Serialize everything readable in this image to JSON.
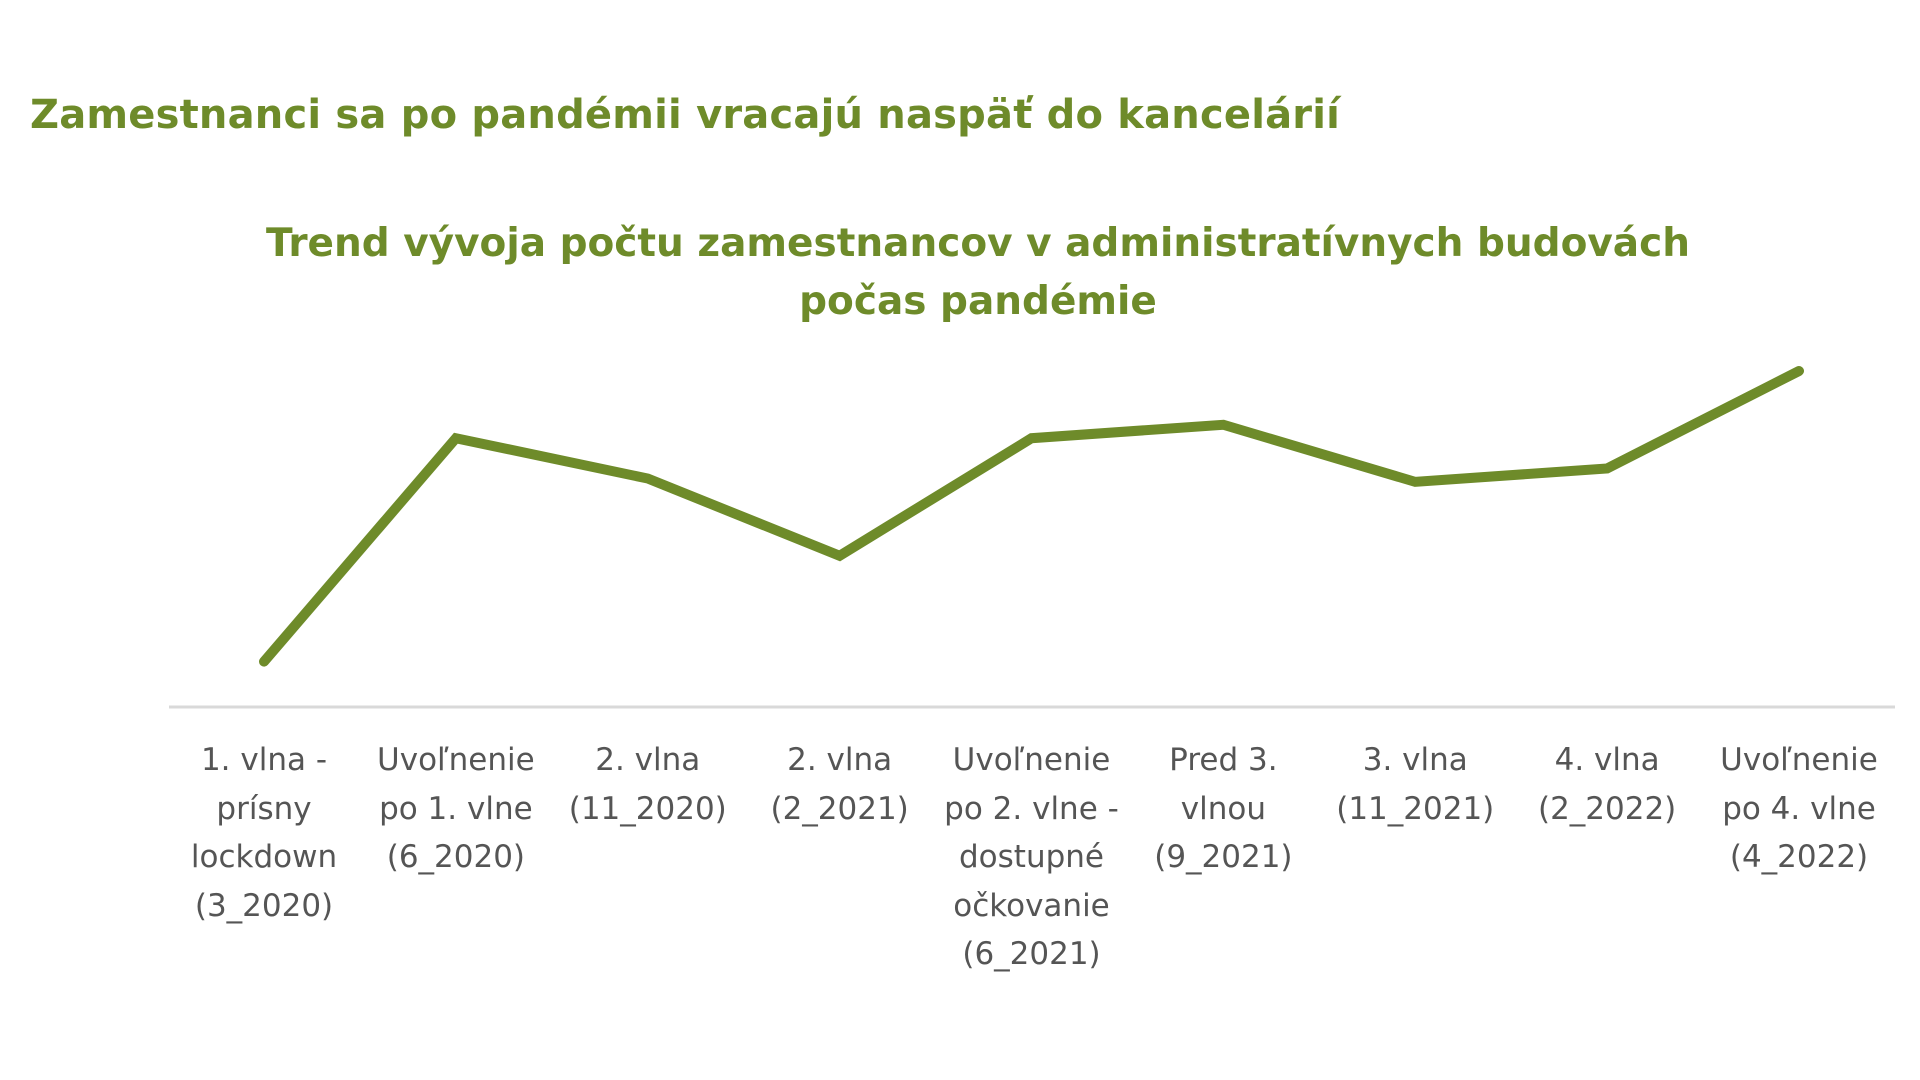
{
  "page_title": "Zamestnanci sa po pandémii vracajú naspäť do kancelárií",
  "chart_data": {
    "type": "line",
    "title_line1": "Trend vývoja počtu zamestnancov v administratívnych budovách",
    "title_line2": "počas pandémie",
    "categories": [
      "1. vlna -\nprísny\nlockdown\n(3_2020)",
      "Uvoľnenie\npo 1. vlne\n(6_2020)",
      "2. vlna\n(11_2020)",
      "2. vlna\n(2_2021)",
      "Uvoľnenie\npo 2. vlne -\ndostupné\nočkovanie\n(6_2021)",
      "Pred 3.\nvlnou\n(9_2021)",
      "3. vlna\n(11_2021)",
      "4. vlna\n(2_2022)",
      "Uvoľnenie\npo 4. vlne\n(4_2022)"
    ],
    "values": [
      13.5,
      80,
      68,
      45,
      80,
      84,
      67,
      71,
      100
    ],
    "ylim": [
      0,
      100
    ],
    "y_axis_visible": false,
    "grid": false,
    "legend": "none",
    "line_color": "#6e8b2a",
    "axis_color": "#d9d9d9"
  }
}
